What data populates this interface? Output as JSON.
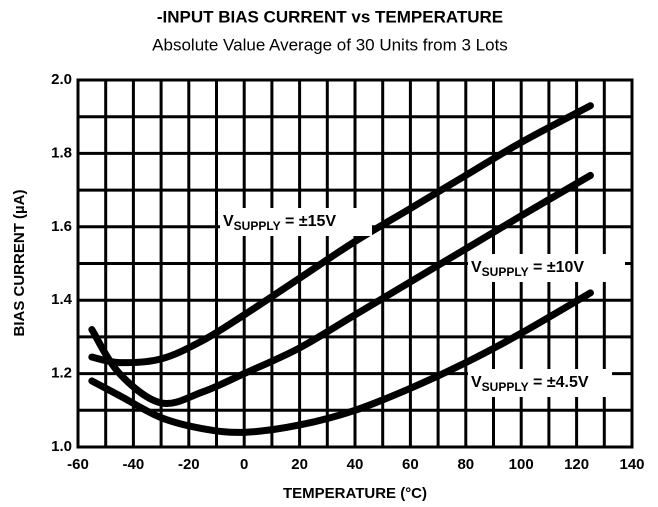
{
  "chart_data": {
    "type": "line",
    "title": "-INPUT BIAS CURRENT vs TEMPERATURE",
    "subtitle": "Absolute Value Average of 30 Units from 3 Lots",
    "xlabel": "TEMPERATURE (°C)",
    "ylabel": "BIAS CURRENT (µA)",
    "x": [
      -55,
      -45,
      -30,
      -15,
      0,
      20,
      40,
      60,
      80,
      100,
      125
    ],
    "series": [
      {
        "label": [
          "V",
          "SUPPLY",
          " = ±15V"
        ],
        "color": "#000000",
        "values": [
          1.245,
          1.23,
          1.24,
          1.29,
          1.36,
          1.46,
          1.56,
          1.65,
          1.74,
          1.83,
          1.93
        ]
      },
      {
        "label": [
          "V",
          "SUPPLY",
          " = ±10V"
        ],
        "color": "#000000",
        "values": [
          1.32,
          1.2,
          1.12,
          1.15,
          1.2,
          1.27,
          1.36,
          1.45,
          1.54,
          1.63,
          1.74
        ]
      },
      {
        "label": [
          "V",
          "SUPPLY",
          " = ±4.5V"
        ],
        "color": "#000000",
        "values": [
          1.18,
          1.14,
          1.08,
          1.05,
          1.04,
          1.06,
          1.1,
          1.16,
          1.23,
          1.31,
          1.42
        ]
      }
    ],
    "xlim": [
      -60,
      140
    ],
    "xticks": [
      -60,
      -40,
      -20,
      0,
      20,
      40,
      60,
      80,
      100,
      120,
      140
    ],
    "xminorticks": [
      -50,
      -30,
      -10,
      10,
      30,
      50,
      70,
      90,
      110,
      130
    ],
    "ylim": [
      1.0,
      2.0
    ],
    "yticks": [
      {
        "value": 1.0,
        "label": "1.0"
      },
      1.2,
      1.4,
      1.6,
      1.8,
      {
        "value": 2.0,
        "label": "2.0"
      }
    ],
    "yminorticks": [
      1.1,
      1.3,
      1.5,
      1.7,
      1.9
    ],
    "grid": true
  }
}
